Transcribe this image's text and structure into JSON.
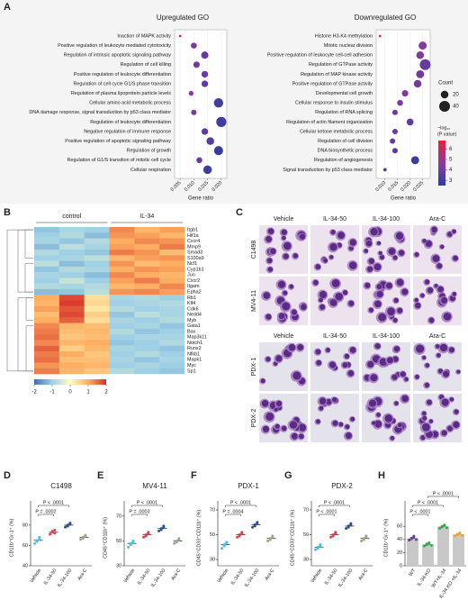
{
  "panel_labels": [
    "A",
    "B",
    "C",
    "D",
    "E",
    "F",
    "G",
    "H"
  ],
  "chart_data": [
    {
      "type": "dotplot",
      "title": "Upregulated GO",
      "xlabel": "Gene ratio",
      "terms": [
        "Inaction of MAPK activity",
        "Positive regulation of leukocyte mediated cytotoxicity",
        "Regulation of intrinsic apoptotic signaling pathway",
        "Regulation of cell killing",
        "Positive regulation of leukocyte differentiation",
        "Regulation of cell cycle G1/S phase transition",
        "Regulation of plasma lipoprotein particle levels",
        "Cellular amino acid metabolic process",
        "DNA damage response, signal transduction by p53 class mediator",
        "Regulation of leukocyte differentiation",
        "Negative regulation of immune response",
        "Positive regulation of apoptotic signaling pathway",
        "Regulation of growth",
        "Regulation of G1/S transition of mitotic cell cycle",
        "Cellular respiration"
      ],
      "x": [
        0.005,
        0.01,
        0.014,
        0.011,
        0.014,
        0.014,
        0.009,
        0.019,
        0.01,
        0.02,
        0.014,
        0.016,
        0.019,
        0.012,
        0.015
      ],
      "sizes": [
        2,
        12,
        18,
        14,
        15,
        15,
        8,
        30,
        10,
        35,
        15,
        20,
        28,
        12,
        25
      ],
      "colors": [
        6.5,
        4.2,
        3.8,
        4.0,
        3.9,
        3.7,
        4.6,
        3.0,
        4.3,
        2.9,
        3.6,
        3.4,
        2.8,
        3.9,
        2.9
      ],
      "xlim": [
        0.003,
        0.022
      ],
      "xticks": [
        {
          "value": 0.005,
          "label": "0.005"
        },
        {
          "value": 0.01,
          "label": "0.010"
        },
        {
          "value": 0.015,
          "label": "0.015"
        },
        {
          "value": 0.02,
          "label": "0.020"
        }
      ],
      "size_title": "Count",
      "size_ticks": [
        20,
        40
      ],
      "size_max": 40,
      "color_title": [
        "−log₁₀",
        "(P value)"
      ],
      "color_lim": [
        2.5,
        6.8
      ],
      "color_ticks": [
        6,
        5,
        4,
        3
      ],
      "color_stops": [
        "#2b3f9e",
        "#8b3a9c",
        "#e8203a"
      ]
    },
    {
      "type": "dotplot",
      "title": "Downregulated GO",
      "xlabel": "Gene ratio",
      "terms": [
        "Histone H3-K4 methylation",
        "Mitotic nuclear division",
        "Positive regulation of leukocyte cell-cell adhesion",
        "Regulation of GTPase activity",
        "Regulation of MAP kinase activity",
        "Positive regulation of GTPase activity",
        "Developmental cell growth",
        "Cellular response to insulin stimulus",
        "Regulation of RNA splicing",
        "Regulation of actin filament organization",
        "Cellular ketone metabolic process",
        "Regulation of cell division",
        "DNA biosynthetic process",
        "Regulation of angiogenesis",
        "Signal transduction by p53 class mediator"
      ],
      "x": [
        0.008,
        0.025,
        0.024,
        0.026,
        0.024,
        0.023,
        0.018,
        0.016,
        0.014,
        0.02,
        0.014,
        0.013,
        0.014,
        0.022,
        0.01
      ],
      "sizes": [
        2,
        22,
        20,
        40,
        22,
        20,
        14,
        12,
        10,
        16,
        10,
        10,
        10,
        22,
        4
      ],
      "colors": [
        6.6,
        4.5,
        4.4,
        3.8,
        4.2,
        4.1,
        4.3,
        4.4,
        4.0,
        3.6,
        3.9,
        3.8,
        3.5,
        2.8,
        3.2
      ],
      "xlim": [
        0.0065,
        0.028
      ],
      "xticks": [
        {
          "value": 0.01,
          "label": "0.010"
        },
        {
          "value": 0.015,
          "label": "0.015"
        },
        {
          "value": 0.02,
          "label": "0.020"
        },
        {
          "value": 0.025,
          "label": "0.025"
        }
      ]
    },
    {
      "type": "heatmap",
      "groups": [
        {
          "name": "control",
          "n": 3
        },
        {
          "name": "IL-34",
          "n": 3
        }
      ],
      "genes": [
        "Itgb1",
        "Hif1a",
        "Cxcr4",
        "Mmp9",
        "Smad3",
        "S100a9",
        "Ncf1",
        "Cyp1b1",
        "Jun",
        "Cxcr2",
        "Itgam",
        "Epha2",
        "Rb1",
        "Klf4",
        "Cdk6",
        "Nedd4",
        "Myb",
        "Gata1",
        "Bax",
        "Map3k11",
        "Notch1",
        "Runx2",
        "Nfkb1",
        "Mapk1",
        "Myc",
        "Sp1"
      ],
      "values": [
        [
          -1.1,
          -0.9,
          -1.0,
          1.3,
          0.9,
          1.1
        ],
        [
          -1.0,
          -0.8,
          -1.2,
          1.2,
          1.1,
          0.9
        ],
        [
          -0.9,
          -1.1,
          -0.8,
          1.0,
          1.3,
          1.2
        ],
        [
          -1.2,
          -0.7,
          -0.9,
          1.1,
          1.0,
          1.4
        ],
        [
          -0.8,
          -1.0,
          -1.1,
          1.4,
          1.2,
          0.8
        ],
        [
          -1.0,
          -0.9,
          -0.7,
          0.9,
          1.1,
          1.2
        ],
        [
          -0.7,
          -1.2,
          -1.0,
          1.2,
          0.8,
          1.0
        ],
        [
          -1.1,
          -0.8,
          -0.9,
          1.0,
          1.2,
          1.1
        ],
        [
          -0.9,
          -1.0,
          -1.2,
          1.3,
          1.0,
          0.9
        ],
        [
          -1.0,
          -0.6,
          -1.0,
          1.1,
          1.4,
          1.0
        ],
        [
          -0.8,
          -0.9,
          -0.8,
          0.9,
          1.0,
          1.3
        ],
        [
          -1.2,
          -1.1,
          -0.7,
          1.2,
          1.3,
          1.1
        ],
        [
          1.0,
          1.8,
          0.4,
          -0.9,
          -0.8,
          -1.0
        ],
        [
          0.9,
          1.9,
          0.5,
          -1.0,
          -0.9,
          -0.8
        ],
        [
          1.1,
          1.7,
          0.3,
          -0.8,
          -1.0,
          -0.9
        ],
        [
          0.8,
          1.8,
          0.6,
          -1.1,
          -0.7,
          -0.9
        ],
        [
          1.0,
          1.6,
          0.4,
          -0.9,
          -1.0,
          -0.8
        ],
        [
          1.3,
          0.9,
          0.8,
          -1.0,
          -0.9,
          -1.1
        ],
        [
          1.4,
          0.8,
          0.9,
          -0.8,
          -1.1,
          -1.0
        ],
        [
          1.5,
          0.7,
          0.8,
          -1.0,
          -0.9,
          -0.9
        ],
        [
          1.3,
          0.9,
          1.0,
          -1.1,
          -1.0,
          -0.8
        ],
        [
          1.6,
          0.6,
          0.9,
          -0.9,
          -1.0,
          -1.1
        ],
        [
          1.4,
          1.0,
          0.7,
          -1.0,
          -0.8,
          -1.0
        ],
        [
          1.5,
          0.8,
          0.8,
          -0.9,
          -1.1,
          -0.9
        ],
        [
          1.2,
          1.0,
          0.9,
          -1.0,
          -0.9,
          -1.0
        ],
        [
          1.4,
          0.9,
          0.7,
          -0.8,
          -1.0,
          -1.1
        ]
      ],
      "clim": [
        -2,
        2
      ],
      "cticks": [
        -2,
        -1,
        0,
        1,
        2
      ],
      "color_stops": [
        "#3f6fb5",
        "#9fd0e6",
        "#ffffbf",
        "#fdae61",
        "#d73027"
      ]
    },
    {
      "type": "dots",
      "title": "C1498",
      "ylabel": "CD11b⁺Gr-1⁺ (%)",
      "groups": [
        "Vehicle",
        "IL-34-50",
        "IL-34-100",
        "Ara-C"
      ],
      "colors": [
        "#4bbfd6",
        "#e0404a",
        "#2a4e8a",
        "#9aa88a"
      ],
      "points": [
        [
          62,
          65,
          66,
          64,
          68
        ],
        [
          71,
          73,
          75,
          74,
          72
        ],
        [
          78,
          80,
          82,
          79,
          81
        ],
        [
          66,
          68,
          70,
          67,
          69
        ]
      ],
      "means": [
        65,
        73,
        80,
        68
      ],
      "ylim": [
        40,
        95
      ],
      "yticks": [
        40,
        60,
        80
      ],
      "comparisons": [
        {
          "groups": [
            0,
            1
          ],
          "label": "P = .0002"
        },
        {
          "groups": [
            0,
            2
          ],
          "label": "P < .0001"
        }
      ]
    },
    {
      "type": "dots",
      "title": "MV4-11",
      "ylabel": "CD45⁺CD11b⁺ (%)",
      "groups": [
        "Vehicle",
        "IL-34-50",
        "IL-34-100",
        "Ara-C"
      ],
      "colors": [
        "#4bbfd6",
        "#e0404a",
        "#2a4e8a",
        "#9aa88a"
      ],
      "points": [
        [
          45,
          47,
          49,
          48,
          50
        ],
        [
          53,
          55,
          57,
          54,
          56
        ],
        [
          58,
          60,
          62,
          59,
          61
        ],
        [
          48,
          50,
          52,
          49,
          51
        ]
      ],
      "means": [
        48,
        55,
        60,
        50
      ],
      "ylim": [
        30,
        75
      ],
      "yticks": [
        30,
        50,
        70
      ],
      "comparisons": [
        {
          "groups": [
            0,
            1
          ],
          "label": "P = .0003"
        },
        {
          "groups": [
            0,
            2
          ],
          "label": "P < .0001"
        }
      ]
    },
    {
      "type": "dots",
      "title": "PDX-1",
      "ylabel": "CD45⁺CD33⁺CD11b⁺ (%)",
      "groups": [
        "Vehicle",
        "IL-34-50",
        "IL-34-100",
        "Ara-C"
      ],
      "colors": [
        "#4bbfd6",
        "#e0404a",
        "#2a4e8a",
        "#9aa88a"
      ],
      "points": [
        [
          39,
          41,
          43,
          42,
          44
        ],
        [
          48,
          50,
          52,
          49,
          51
        ],
        [
          56,
          58,
          60,
          57,
          59
        ],
        [
          45,
          47,
          49,
          46,
          48
        ]
      ],
      "means": [
        42,
        50,
        58,
        47
      ],
      "ylim": [
        25,
        70
      ],
      "yticks": [
        30,
        50,
        70
      ],
      "comparisons": [
        {
          "groups": [
            0,
            1
          ],
          "label": "P = .0004"
        },
        {
          "groups": [
            0,
            2
          ],
          "label": "P < .0001"
        }
      ]
    },
    {
      "type": "dots",
      "title": "PDX-2",
      "ylabel": "CD45⁺CD33⁺CD11b⁺ (%)",
      "groups": [
        "Vehicle",
        "IL-34-50",
        "IL-34-100",
        "Ara-C"
      ],
      "colors": [
        "#4bbfd6",
        "#e0404a",
        "#2a4e8a",
        "#9aa88a"
      ],
      "points": [
        [
          38,
          40,
          42,
          39,
          41
        ],
        [
          48,
          50,
          52,
          49,
          51
        ],
        [
          55,
          57,
          59,
          56,
          58
        ],
        [
          45,
          47,
          49,
          46,
          48
        ]
      ],
      "means": [
        40,
        50,
        57,
        47
      ],
      "ylim": [
        25,
        70
      ],
      "yticks": [
        30,
        50,
        70
      ],
      "comparisons": [
        {
          "groups": [
            0,
            1
          ],
          "label": "P < .0001"
        },
        {
          "groups": [
            0,
            2
          ],
          "label": "P < .0001"
        }
      ]
    },
    {
      "type": "dots",
      "ylabel": "CD11b⁺Gr-1⁺ (%)",
      "bars": true,
      "bar_color": "#c8c8c8",
      "groups": [
        "WT",
        "IL-34-KO",
        "WT+IL-34",
        "IL-34 KO +IL-34"
      ],
      "colors": [
        "#6a3d8f",
        "#35a64a",
        "#35a64a",
        "#f0a030"
      ],
      "points": [
        [
          39,
          41,
          43,
          42,
          45,
          40
        ],
        [
          30,
          32,
          34,
          33,
          35,
          31
        ],
        [
          57,
          59,
          61,
          60,
          62,
          58
        ],
        [
          45,
          47,
          49,
          48,
          50,
          46
        ]
      ],
      "means": [
        42,
        33,
        60,
        48
      ],
      "ylim": [
        0,
        85
      ],
      "yticks": [
        0,
        20,
        40,
        60
      ],
      "comparisons": [
        {
          "groups": [
            0,
            1
          ],
          "label": "P < .0001"
        },
        {
          "groups": [
            0,
            2
          ],
          "label": "P < .0001"
        },
        {
          "groups": [
            1,
            3
          ],
          "label": "P < .0001"
        }
      ]
    }
  ],
  "micrographs": [
    {
      "columns": [
        "Vehicle",
        "IL-34-50",
        "IL-34-100",
        "Ara-C"
      ],
      "rows": [
        "C1498",
        "MV4-11"
      ]
    },
    {
      "columns": [
        "Vehicle",
        "IL-34-50",
        "IL-34-100",
        "Ara-C"
      ],
      "rows": [
        "PDX-1",
        "PDX-2"
      ]
    }
  ]
}
